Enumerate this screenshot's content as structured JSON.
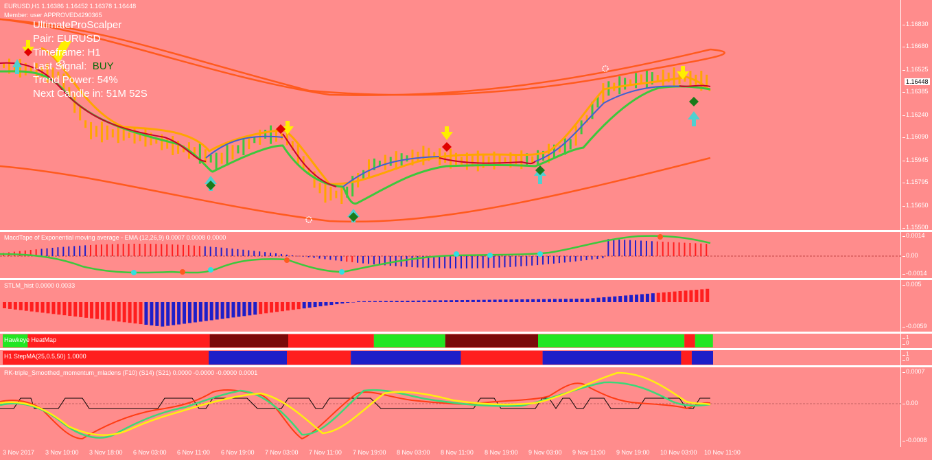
{
  "window": {
    "symbol_line": "EURUSD,H1  1.16386 1.16452 1.16378 1.16448",
    "member_line": "Member: user   APPROVED4290365"
  },
  "scalper_panel": {
    "name": "UltimateProScalper",
    "pair": "Pair: EURUSD",
    "timeframe": "Timeframe: H1",
    "last_signal_label": "Last Signal:",
    "last_signal_value": "BUY",
    "trend_power": "Trend Power: 54%",
    "next_candle": "Next Candle in: 51M 52S"
  },
  "main_axis": {
    "ticks": [
      "1.16830",
      "1.16680",
      "1.16525",
      "1.16385",
      "1.16240",
      "1.16090",
      "1.15945",
      "1.15795",
      "1.15650",
      "1.15500"
    ],
    "current_price": "1.16448"
  },
  "macd_pane": {
    "label": "MacdTape of Exponential moving average - EMA (12,26,9) 0.0007 0.0008 0.0000",
    "ticks": [
      "0.0014",
      "0.00",
      "-0.0014"
    ]
  },
  "stlm_pane": {
    "label": "STLM_hist 0.0000 0.0033",
    "ticks": [
      "0.005",
      "-0.0059"
    ]
  },
  "heatmap_pane": {
    "label": "Hawkeye HeatMap",
    "ticks": [
      "1",
      "0"
    ]
  },
  "stepma_pane": {
    "label": "H1 StepMA(25,0.5,50) 1.0000",
    "ticks": [
      "1",
      "0"
    ]
  },
  "rk_pane": {
    "label": "RK-triple_Smoothed_momentum_mladens (F10) (S14) (S21) 0.0000 -0.0000 -0.0000 0.0001",
    "ticks": [
      "0.0007",
      "0.00",
      "-0.0008"
    ]
  },
  "time_axis": [
    "3 Nov 2017",
    "3 Nov 10:00",
    "3 Nov 18:00",
    "6 Nov 03:00",
    "6 Nov 11:00",
    "6 Nov 19:00",
    "7 Nov 03:00",
    "7 Nov 11:00",
    "7 Nov 19:00",
    "8 Nov 03:00",
    "8 Nov 11:00",
    "8 Nov 19:00",
    "9 Nov 03:00",
    "9 Nov 11:00",
    "9 Nov 19:00",
    "10 Nov 03:00",
    "10 Nov 11:00"
  ],
  "colors": {
    "background": "#ff8c8c",
    "band": "#ff5a1e",
    "green_line": "#3cc83c",
    "orange_line": "#ffa500",
    "blue_line": "#4060d0",
    "red_line": "#c8002a",
    "hist_red": "#ff1e1e",
    "hist_blue": "#1e1ec8",
    "heat_green": "#22e622",
    "heat_darkred": "#7a0a0a"
  }
}
